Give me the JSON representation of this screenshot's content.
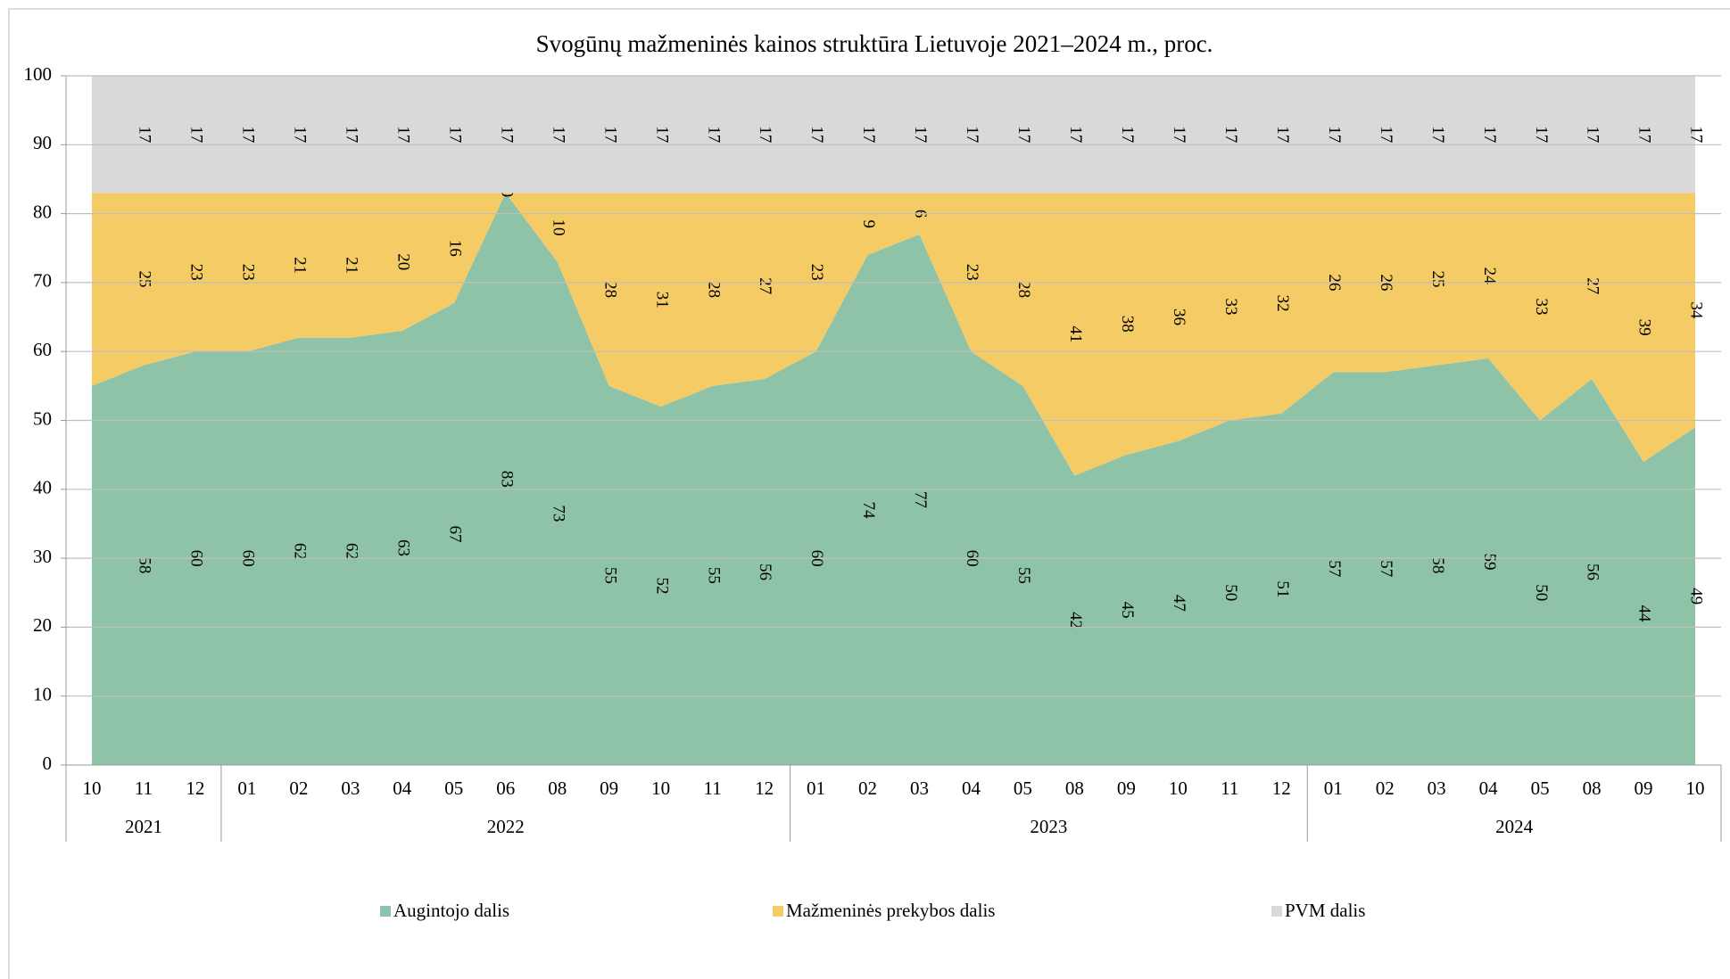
{
  "chart_data": {
    "type": "stacked_area",
    "title": "Svogūnų mažmeninės kainos struktūra Lietuvoje 2021–2024 m., proc.",
    "categories": [
      "10",
      "11",
      "12",
      "01",
      "02",
      "03",
      "04",
      "05",
      "06",
      "08",
      "09",
      "10",
      "11",
      "12",
      "01",
      "02",
      "03",
      "04",
      "05",
      "08",
      "09",
      "10",
      "11",
      "12",
      "01",
      "02",
      "03",
      "04",
      "05",
      "08",
      "09",
      "10"
    ],
    "category_years": [
      "2021",
      "2021",
      "2021",
      "2022",
      "2022",
      "2022",
      "2022",
      "2022",
      "2022",
      "2022",
      "2022",
      "2022",
      "2022",
      "2022",
      "2023",
      "2023",
      "2023",
      "2023",
      "2023",
      "2023",
      "2023",
      "2023",
      "2023",
      "2023",
      "2024",
      "2024",
      "2024",
      "2024",
      "2024",
      "2024",
      "2024",
      "2024"
    ],
    "series": [
      {
        "name": "Augintojo dalis",
        "color": "#8fc3a7",
        "values": [
          55,
          58,
          60,
          60,
          62,
          62,
          63,
          67,
          83,
          73,
          55,
          52,
          55,
          56,
          60,
          74,
          77,
          60,
          55,
          42,
          45,
          47,
          50,
          51,
          57,
          57,
          58,
          59,
          50,
          56,
          44,
          49
        ],
        "value_labels": [
          null,
          "58",
          "60",
          "60",
          "62",
          "62",
          "63",
          "67",
          "83",
          "73",
          "55",
          "52",
          "55",
          "56",
          "60",
          "74",
          "77",
          "60",
          "55",
          "42",
          "45",
          "47",
          "50",
          "51",
          "57",
          "57",
          "58",
          "59",
          "50",
          "56",
          "44",
          "49"
        ]
      },
      {
        "name": "Mažmeninės prekybos dalis",
        "color": "#f5cb66",
        "values": [
          28,
          25,
          23,
          23,
          21,
          21,
          20,
          16,
          0,
          10,
          28,
          31,
          28,
          27,
          23,
          9,
          6,
          23,
          28,
          41,
          38,
          36,
          33,
          32,
          26,
          26,
          25,
          24,
          33,
          27,
          39,
          34
        ],
        "value_labels": [
          null,
          "25",
          "23",
          "23",
          "21",
          "21",
          "20",
          "16",
          "0",
          "10",
          "28",
          "31",
          "28",
          "27",
          "23",
          "9",
          "6",
          "23",
          "28",
          "41",
          "38",
          "36",
          "33",
          "32",
          "26",
          "26",
          "25",
          "24",
          "33",
          "27",
          "39",
          "34"
        ]
      },
      {
        "name": "PVM dalis",
        "color": "#d9d9d9",
        "values": [
          17,
          17,
          17,
          17,
          17,
          17,
          17,
          17,
          17,
          17,
          17,
          17,
          17,
          17,
          17,
          17,
          17,
          17,
          17,
          17,
          17,
          17,
          17,
          17,
          17,
          17,
          17,
          17,
          17,
          17,
          17,
          17
        ],
        "value_labels": [
          null,
          "17",
          "17",
          "17",
          "17",
          "17",
          "17",
          "17",
          "17",
          "17",
          "17",
          "17",
          "17",
          "17",
          "17",
          "17",
          "17",
          "17",
          "17",
          "17",
          "17",
          "17",
          "17",
          "17",
          "17",
          "17",
          "17",
          "17",
          "17",
          "17",
          "17",
          "17"
        ]
      }
    ],
    "ylim": [
      0,
      100
    ],
    "yticks": [
      0,
      10,
      20,
      30,
      40,
      50,
      60,
      70,
      80,
      90,
      100
    ],
    "grid": true,
    "legend": "bottom"
  }
}
